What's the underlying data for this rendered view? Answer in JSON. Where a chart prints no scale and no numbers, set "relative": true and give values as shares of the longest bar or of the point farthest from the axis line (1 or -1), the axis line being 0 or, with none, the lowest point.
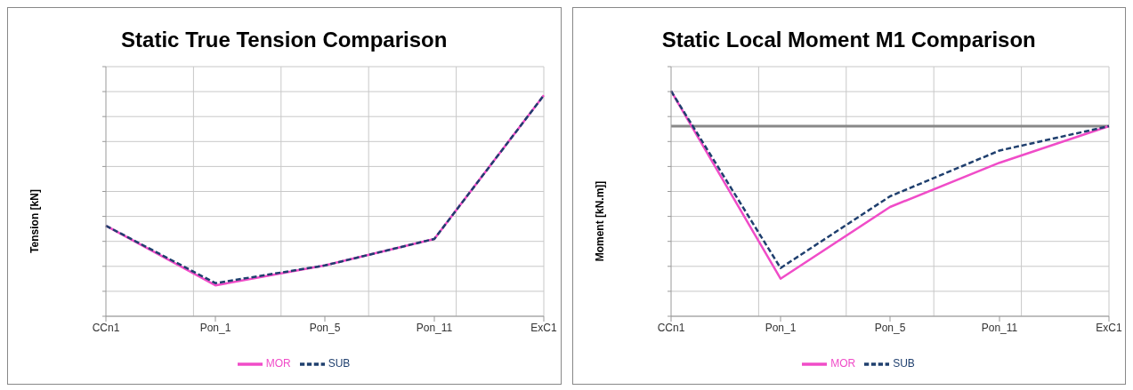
{
  "chart_data": [
    {
      "type": "line",
      "title": "Static True Tension Comparison",
      "ylabel": "Tension [kN]",
      "relative": true,
      "grid": true,
      "legend": "bottom",
      "categories": [
        "CCn1",
        "Pon_1",
        "Pon_5",
        "Pon_11",
        "ExC1"
      ],
      "series": [
        {
          "name": "MOR",
          "color": "#f04cc8",
          "line_style": "solid",
          "values": [
            0.41,
            0.14,
            0.23,
            0.35,
            1
          ]
        },
        {
          "name": "SUB",
          "color": "#1f3f6e",
          "line_style": "dashed",
          "values": [
            0.41,
            0.15,
            0.23,
            0.35,
            1
          ]
        }
      ]
    },
    {
      "type": "line",
      "title": "Static Local Moment M1 Comparison",
      "ylabel": "Moment [kN.m]]",
      "relative": true,
      "grid": true,
      "legend": "bottom",
      "categories": [
        "CCn1",
        "Pon_1",
        "Pon_5",
        "Pon_11",
        "ExC1"
      ],
      "series": [
        {
          "name": "MOR",
          "color": "#f04cc8",
          "line_style": "solid",
          "values": [
            0.23,
            -1,
            -0.53,
            -0.24,
            0
          ]
        },
        {
          "name": "SUB",
          "color": "#1f3f6e",
          "line_style": "dashed",
          "values": [
            0.23,
            -0.93,
            -0.46,
            -0.16,
            0
          ]
        }
      ]
    }
  ]
}
